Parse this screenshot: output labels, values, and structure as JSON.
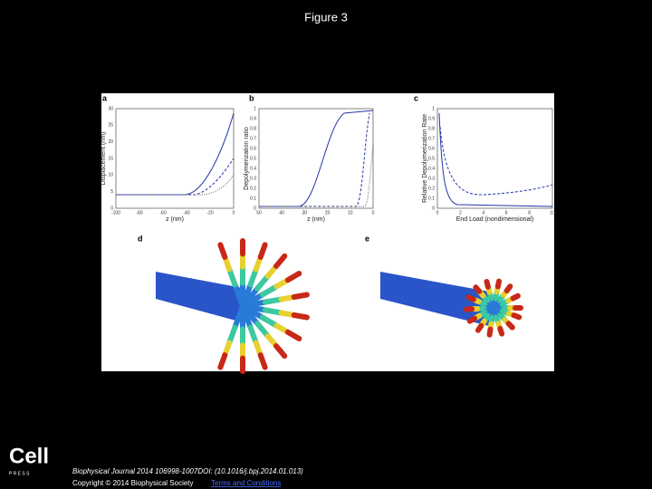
{
  "title": "Figure 3",
  "panels": [
    {
      "letter": "a",
      "ylabel": "Displacement (nm)",
      "xlabel": "z (nm)",
      "xticks": [
        "-100",
        "-80",
        "-60",
        "-40",
        "-20",
        "0"
      ],
      "yticks": [
        "0",
        "5",
        "10",
        "15",
        "20",
        "25",
        "30"
      ]
    },
    {
      "letter": "b",
      "ylabel": "Depolymerization ratio",
      "xlabel": "z (nm)",
      "xticks": [
        "50",
        "40",
        "30",
        "20",
        "10",
        "0"
      ],
      "yticks": [
        "0",
        "0.1",
        "0.2",
        "0.3",
        "0.4",
        "0.5",
        "0.6",
        "0.7",
        "0.8",
        "0.9",
        "1"
      ]
    },
    {
      "letter": "c",
      "ylabel": "Relative Depolymerization Rate",
      "xlabel": "End Load (nondimensional)",
      "xticks": [
        "0",
        "2",
        "4",
        "6",
        "8",
        "10"
      ],
      "yticks": [
        "0",
        "0.1",
        "0.2",
        "0.3",
        "0.4",
        "0.5",
        "0.6",
        "0.7",
        "0.8",
        "0.9",
        "1"
      ]
    },
    {
      "letter": "d"
    },
    {
      "letter": "e"
    }
  ],
  "logo": {
    "name": "Cell",
    "sub": "P R E S S"
  },
  "footer": {
    "citation": "Biophysical Journal 2014 106998-1007DOI: (10.1016/j.bpj.2014.01.013)",
    "copyright": "Copyright © 2014 Biophysical Society",
    "link": "Terms and Conditions"
  }
}
